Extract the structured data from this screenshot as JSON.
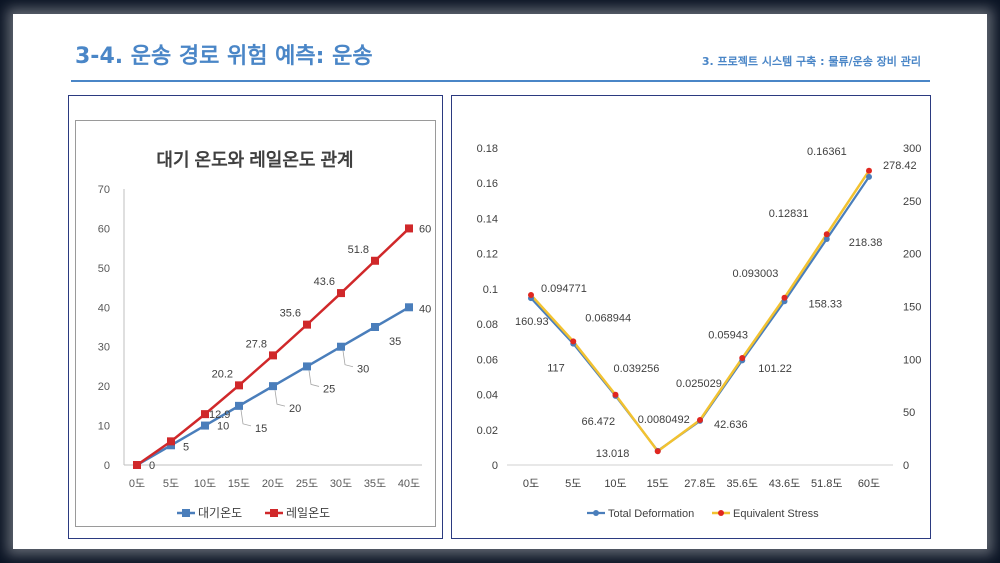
{
  "header": {
    "title": "3-4. 운송 경로 위험 예측: 운송",
    "subtitle": "3. 프로젝트 시스템 구축 : 물류/운송 장비 관리"
  },
  "chart_data": [
    {
      "type": "line",
      "title": "대기 온도와 레일온도 관계",
      "categories": [
        "0도",
        "5도",
        "10도",
        "15도",
        "20도",
        "25도",
        "30도",
        "35도",
        "40도"
      ],
      "ylim": [
        0,
        70
      ],
      "yticks": [
        0,
        10,
        20,
        30,
        40,
        50,
        60,
        70
      ],
      "grid": false,
      "legend_position": "bottom",
      "series": [
        {
          "name": "대기온도",
          "color": "#4a7ebb",
          "values": [
            0,
            5,
            10,
            15,
            20,
            25,
            30,
            35,
            40
          ],
          "labels": [
            "0",
            "5",
            "10",
            "15",
            "20",
            "25",
            "30",
            "35",
            "40"
          ]
        },
        {
          "name": "레일온도",
          "color": "#d0282a",
          "values": [
            0,
            6,
            12.9,
            20.2,
            27.8,
            35.6,
            43.6,
            51.8,
            60
          ],
          "labels": [
            "",
            "",
            "12.9",
            "20.2",
            "27.8",
            "35.6",
            "43.6",
            "51.8",
            "60"
          ]
        }
      ]
    },
    {
      "type": "line",
      "categories": [
        "0도",
        "5도",
        "10도",
        "15도",
        "27.8도",
        "35.6도",
        "43.6도",
        "51.8도",
        "60도"
      ],
      "ylim": [
        0,
        0.18
      ],
      "yticks": [
        "0",
        "0.02",
        "0.04",
        "0.06",
        "0.08",
        "0.1",
        "0.12",
        "0.14",
        "0.16",
        "0.18"
      ],
      "y2lim": [
        0,
        300
      ],
      "y2ticks": [
        "0",
        "50",
        "100",
        "150",
        "200",
        "250",
        "300"
      ],
      "grid": false,
      "legend_position": "bottom",
      "series": [
        {
          "name": "Total Deformation",
          "axis": "left",
          "color": "#4a7ebb",
          "values": [
            0.094771,
            0.068944,
            0.039256,
            0.0080492,
            0.025029,
            0.05943,
            0.093003,
            0.12831,
            0.16361
          ],
          "labels": [
            "0.094771",
            "0.068944",
            "0.039256",
            "0.0080492",
            "0.025029",
            "0.05943",
            "0.093003",
            "0.12831",
            "0.16361"
          ]
        },
        {
          "name": "Equivalent Stress",
          "axis": "right",
          "color": "#f2c230",
          "marker_color": "#e0271f",
          "values": [
            160.93,
            117,
            66.472,
            13.018,
            42.636,
            101.22,
            158.33,
            218.38,
            278.42
          ],
          "labels": [
            "160.93",
            "117",
            "66.472",
            "13.018",
            "42.636",
            "101.22",
            "158.33",
            "218.38",
            "278.42"
          ]
        }
      ]
    }
  ]
}
